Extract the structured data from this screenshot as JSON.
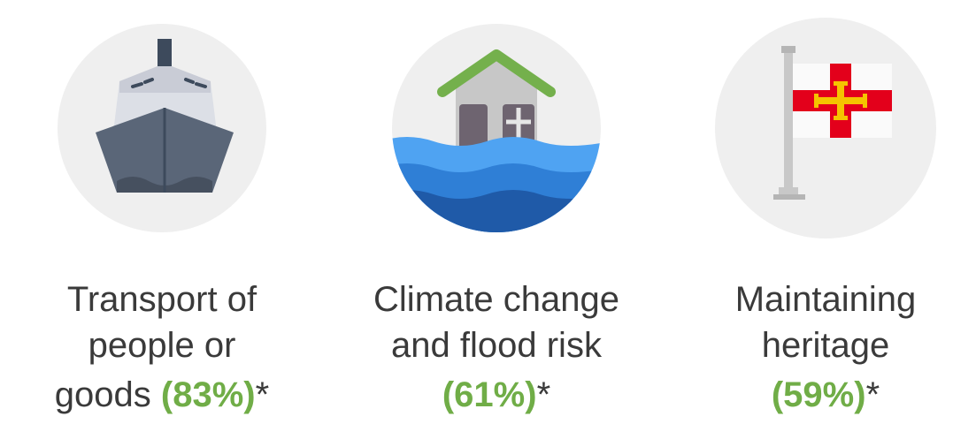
{
  "items": [
    {
      "lines": [
        "Transport of",
        "people or",
        "goods"
      ],
      "percent": "(83%)",
      "note": "*"
    },
    {
      "lines": [
        "Climate change",
        "and flood risk"
      ],
      "percent": "(61%)",
      "note": "*"
    },
    {
      "lines": [
        "Maintaining",
        "heritage"
      ],
      "percent": "(59%)",
      "note": "*"
    }
  ]
}
